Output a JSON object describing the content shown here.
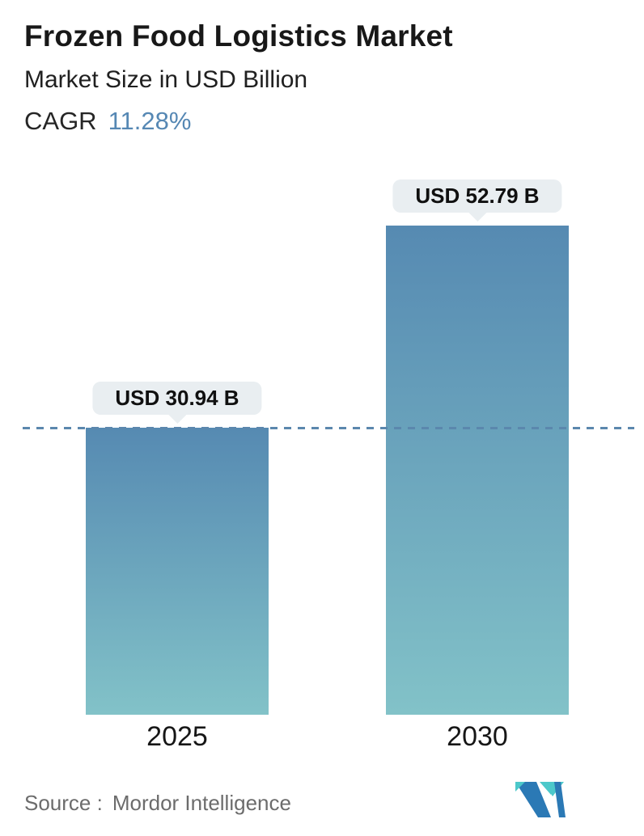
{
  "header": {
    "title": "Frozen Food Logistics Market",
    "subtitle": "Market Size in USD Billion",
    "cagr_label": "CAGR",
    "cagr_value": "11.28%"
  },
  "chart_data": {
    "type": "bar",
    "title": "Frozen Food Logistics Market",
    "subtitle": "Market Size in USD Billion",
    "unit": "USD Billion",
    "categories": [
      "2025",
      "2030"
    ],
    "values": [
      30.94,
      52.79
    ],
    "value_labels": [
      "USD 30.94 B",
      "USD 52.79 B"
    ],
    "cagr_percent": 11.28,
    "ylim": [
      0,
      60
    ],
    "grid": false,
    "legend": false,
    "reference_line": {
      "value": 30.94,
      "style": "dashed",
      "color": "#5b87ad"
    },
    "bar_gradient": [
      "#568ab2",
      "#82c2c8"
    ]
  },
  "footer": {
    "source_label": "Source :",
    "source_name": "Mordor Intelligence",
    "logo_name": "mordor-intelligence-logo"
  },
  "colors": {
    "title_text": "#181818",
    "accent_value": "#5688b4",
    "bar_top": "#568ab2",
    "bar_bottom": "#82c2c8",
    "tooltip_bg": "#e9eef1",
    "tooltip_text": "#101010",
    "dashed_line": "#5b87ad",
    "axis_label": "#161616",
    "source_text": "#6c6c6c",
    "logo_blue": "#2b79b5",
    "logo_teal": "#4cc8ca"
  }
}
